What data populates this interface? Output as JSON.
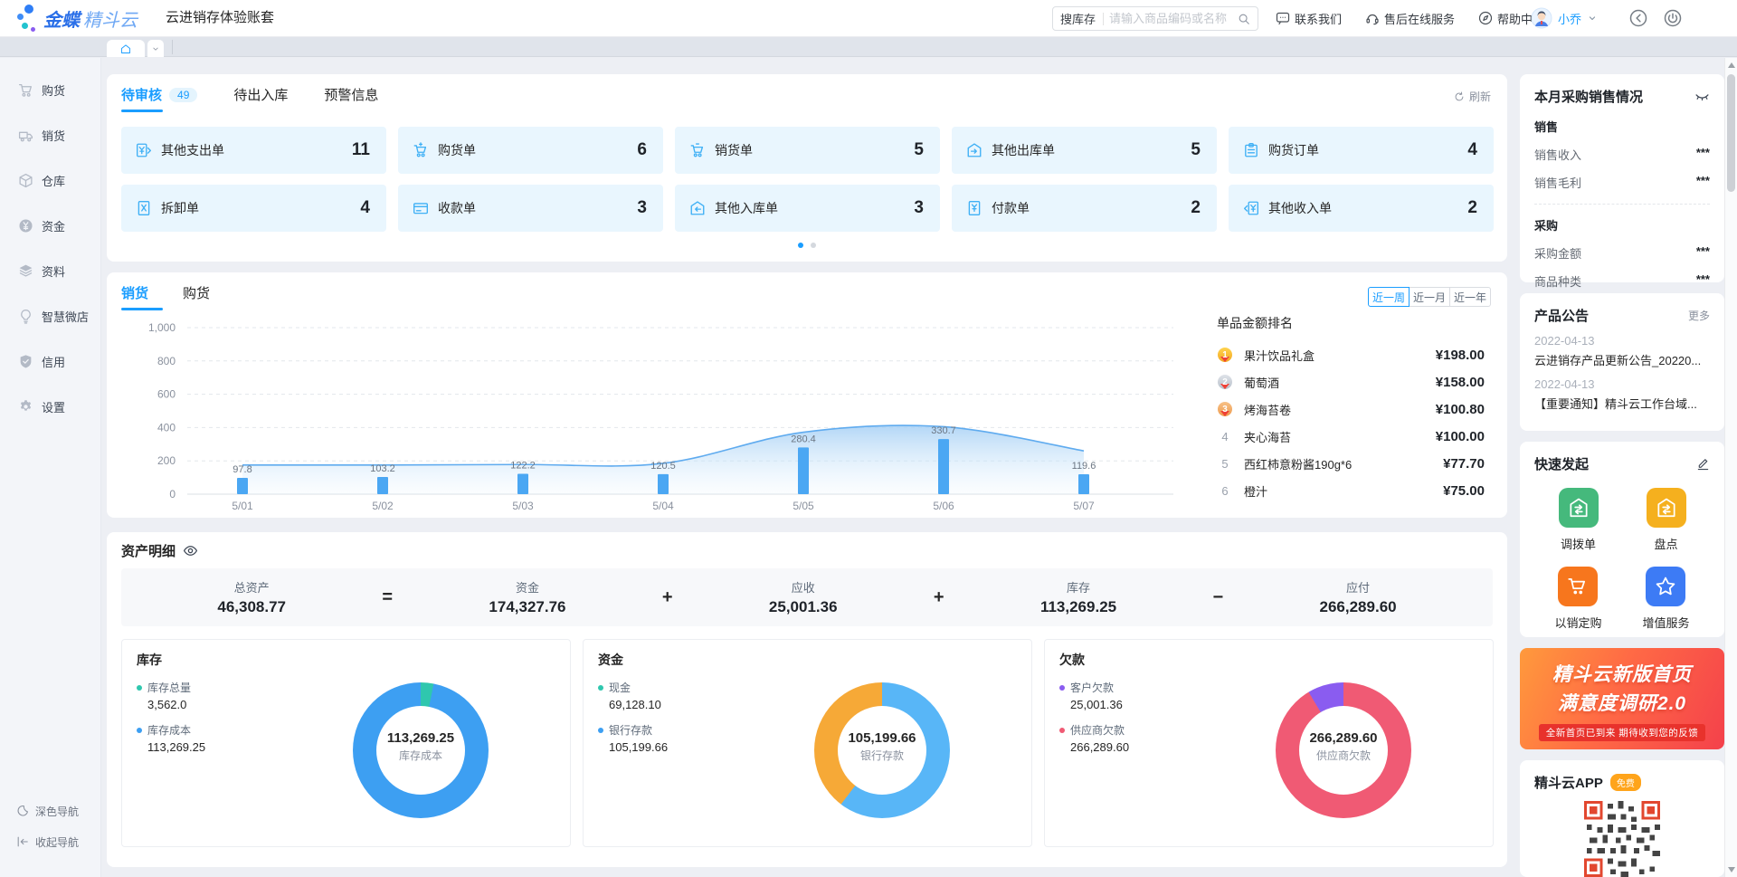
{
  "header": {
    "logo": {
      "bold": "金蝶",
      "light": "精斗云"
    },
    "account_title": "云进销存体验账套",
    "search": {
      "label": "搜库存",
      "placeholder": "请输入商品编码或名称"
    },
    "links": [
      {
        "id": "contact-us",
        "label": "联系我们",
        "icon": "chat"
      },
      {
        "id": "after-sales-service",
        "label": "售后在线服务",
        "icon": "headset"
      },
      {
        "id": "help-center",
        "label": "帮助中心",
        "icon": "help"
      }
    ],
    "user": {
      "name": "小乔"
    }
  },
  "sidebar": {
    "items": [
      {
        "id": "purchase",
        "label": "购货",
        "icon": "cart"
      },
      {
        "id": "sales",
        "label": "销货",
        "icon": "truck"
      },
      {
        "id": "warehouse",
        "label": "仓库",
        "icon": "cube"
      },
      {
        "id": "funds",
        "label": "资金",
        "icon": "yen-circle"
      },
      {
        "id": "data",
        "label": "资料",
        "icon": "layers"
      },
      {
        "id": "smart-store",
        "label": "智慧微店",
        "icon": "bulb"
      },
      {
        "id": "credit",
        "label": "信用",
        "icon": "shield"
      },
      {
        "id": "settings",
        "label": "设置",
        "icon": "gear"
      }
    ],
    "footer": [
      {
        "id": "dark-nav",
        "label": "深色导航",
        "icon": "moon"
      },
      {
        "id": "collapse-nav",
        "label": "收起导航",
        "icon": "collapse"
      }
    ]
  },
  "todo": {
    "tabs": [
      {
        "label": "待审核",
        "badge": "49",
        "active": true
      },
      {
        "label": "待出入库",
        "active": false
      },
      {
        "label": "预警信息",
        "active": false
      }
    ],
    "refresh_label": "刷新",
    "cards": [
      {
        "label": "其他支出单",
        "count": "11",
        "icon": "doc-expense"
      },
      {
        "label": "购货单",
        "count": "6",
        "icon": "cart-buy"
      },
      {
        "label": "销货单",
        "count": "5",
        "icon": "cart-sell"
      },
      {
        "label": "其他出库单",
        "count": "5",
        "icon": "house-out"
      },
      {
        "label": "购货订单",
        "count": "4",
        "icon": "clipboard"
      },
      {
        "label": "拆卸单",
        "count": "4",
        "icon": "doc-split"
      },
      {
        "label": "收款单",
        "count": "3",
        "icon": "card-receive"
      },
      {
        "label": "其他入库单",
        "count": "3",
        "icon": "house-in"
      },
      {
        "label": "付款单",
        "count": "2",
        "icon": "doc-pay"
      },
      {
        "label": "其他收入单",
        "count": "2",
        "icon": "doc-income"
      }
    ],
    "carousel": {
      "pages": 2,
      "active": 0
    }
  },
  "trend": {
    "tabs": [
      {
        "label": "销货",
        "active": true
      },
      {
        "label": "购货",
        "active": false
      }
    ],
    "ranges": [
      {
        "label": "近一周",
        "active": true
      },
      {
        "label": "近一月",
        "active": false
      },
      {
        "label": "近一年",
        "active": false
      }
    ],
    "chart_data": {
      "type": "bar+area",
      "x": [
        "5/01",
        "5/02",
        "5/03",
        "5/04",
        "5/05",
        "5/06",
        "5/07"
      ],
      "series": [
        {
          "name": "销货金额-柱",
          "type": "bar",
          "values": [
            97.8,
            103.2,
            122.2,
            120.5,
            280.4,
            330.7,
            119.6
          ]
        },
        {
          "name": "销货趋势-面积",
          "type": "area",
          "values": [
            175,
            175,
            178,
            185,
            372,
            405,
            260
          ]
        }
      ],
      "ylim": [
        0,
        1000
      ],
      "ytick_labels": [
        "1,000",
        "800",
        "600",
        "400",
        "200",
        "0"
      ],
      "grid": "dashed",
      "bar_color": "#4ba7f3",
      "area_line_color": "#5fabef",
      "area_fill_top": "#9fccf4",
      "area_fill_bottom": "#e3f2fd",
      "legend_position": "none"
    },
    "ranking": {
      "title": "单品金额排名",
      "items": [
        {
          "rank": 1,
          "name": "果汁饮品礼盒",
          "amount": "¥198.00"
        },
        {
          "rank": 2,
          "name": "葡萄酒",
          "amount": "¥158.00"
        },
        {
          "rank": 3,
          "name": "烤海苔卷",
          "amount": "¥100.80"
        },
        {
          "rank": 4,
          "name": "夹心海苔",
          "amount": "¥100.00"
        },
        {
          "rank": 5,
          "name": "西红柿意粉酱190g*6",
          "amount": "¥77.70"
        },
        {
          "rank": 6,
          "name": "橙汁",
          "amount": "¥75.00"
        }
      ]
    }
  },
  "assets": {
    "title": "资产明细",
    "summary": {
      "groups": [
        {
          "label": "总资产",
          "value": "46,308.77"
        },
        {
          "label": "资金",
          "value": "174,327.76"
        },
        {
          "label": "应收",
          "value": "25,001.36"
        },
        {
          "label": "库存",
          "value": "113,269.25"
        },
        {
          "label": "应付",
          "value": "266,289.60"
        }
      ],
      "operators": [
        "=",
        "+",
        "+",
        "−"
      ]
    },
    "panels": [
      {
        "title": "库存",
        "legend": [
          {
            "label": "库存总量",
            "value": "3,562.0",
            "color": "#2fc7ae"
          },
          {
            "label": "库存成本",
            "value": "113,269.25",
            "color": "#3d9ff2"
          }
        ],
        "center_value": "113,269.25",
        "center_label": "库存成本",
        "slices": [
          {
            "color": "#2fc7ae",
            "pct": 3.05
          },
          {
            "color": "#3d9ff2",
            "pct": 96.95
          }
        ]
      },
      {
        "title": "资金",
        "legend": [
          {
            "label": "现金",
            "value": "69,128.10",
            "color": "#2fc7ae"
          },
          {
            "label": "银行存款",
            "value": "105,199.66",
            "color": "#3d9ff2"
          }
        ],
        "center_value": "105,199.66",
        "center_label": "银行存款",
        "slices": [
          {
            "color": "#58b6f7",
            "pct": 60.35
          },
          {
            "color": "#f6a937",
            "pct": 39.65
          }
        ]
      },
      {
        "title": "欠款",
        "legend": [
          {
            "label": "客户欠款",
            "value": "25,001.36",
            "color": "#8a5cf0"
          },
          {
            "label": "供应商欠款",
            "value": "266,289.60",
            "color": "#f05a74"
          }
        ],
        "center_value": "266,289.60",
        "center_label": "供应商欠款",
        "slices": [
          {
            "color": "#f05a74",
            "pct": 91.42
          },
          {
            "color": "#8a5cf0",
            "pct": 8.58
          }
        ]
      }
    ]
  },
  "right_panel": {
    "month": {
      "title": "本月采购销售情况",
      "sections": [
        {
          "heading": "销售",
          "rows": [
            {
              "label": "销售收入",
              "value": "***"
            },
            {
              "label": "销售毛利",
              "value": "***"
            }
          ]
        },
        {
          "heading": "采购",
          "rows": [
            {
              "label": "采购金额",
              "value": "***"
            },
            {
              "label": "商品种类",
              "value": "***"
            }
          ]
        }
      ]
    },
    "announcements": {
      "title": "产品公告",
      "more": "更多",
      "items": [
        {
          "date": "2022-04-13",
          "text": "云进销存产品更新公告_20220..."
        },
        {
          "date": "2022-04-13",
          "text": "【重要通知】精斗云工作台域..."
        }
      ]
    },
    "quick": {
      "title": "快速发起",
      "items": [
        {
          "id": "transfer-order",
          "label": "调拨单",
          "icon": "house-swap",
          "color": "#45b97c"
        },
        {
          "id": "stocktake",
          "label": "盘点",
          "icon": "house-swap",
          "color": "#f5b01e"
        },
        {
          "id": "purchase-by-sales",
          "label": "以销定购",
          "icon": "cart-big",
          "color": "#f7761d"
        },
        {
          "id": "value-added-service",
          "label": "增值服务",
          "icon": "star",
          "color": "#3d7bf5"
        }
      ]
    },
    "banner": {
      "line1": "精斗云新版首页",
      "line2": "满意度调研2.0",
      "line3": "全新首页已到来 期待收到您的反馈"
    },
    "app": {
      "title": "精斗云APP",
      "badge": "免费"
    }
  }
}
